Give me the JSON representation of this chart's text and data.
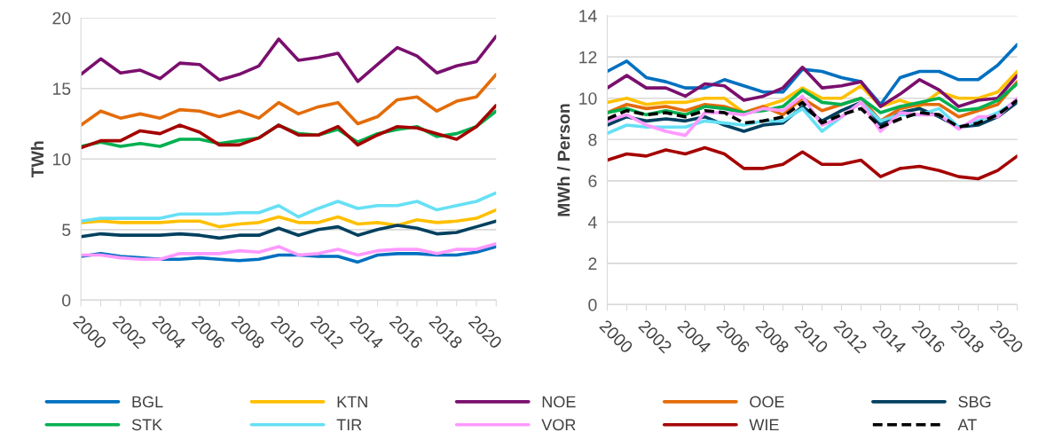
{
  "chart_data": [
    {
      "type": "line",
      "ylabel": "TWh",
      "categories": [
        "2000",
        null,
        "2002",
        null,
        "2004",
        null,
        "2006",
        null,
        "2008",
        null,
        "2010",
        null,
        "2012",
        null,
        "2014",
        null,
        "2016",
        null,
        "2018",
        null,
        "2020",
        null
      ],
      "ylim": [
        0,
        20
      ],
      "yticks": [
        0,
        5,
        10,
        15,
        20
      ],
      "grid": "y",
      "legend": "bottom",
      "line_style": "solid",
      "series": [
        {
          "name": "BGL",
          "color": "#0070c0",
          "values": [
            3.1,
            3.3,
            3.1,
            3.0,
            2.9,
            2.9,
            3.0,
            2.9,
            2.8,
            2.9,
            3.2,
            3.2,
            3.1,
            3.1,
            2.7,
            3.2,
            3.3,
            3.3,
            3.2,
            3.2,
            3.4,
            3.8
          ]
        },
        {
          "name": "KTN",
          "color": "#ffc000",
          "values": [
            5.5,
            5.6,
            5.5,
            5.5,
            5.5,
            5.6,
            5.6,
            5.2,
            5.4,
            5.5,
            5.9,
            5.5,
            5.5,
            5.9,
            5.4,
            5.5,
            5.3,
            5.7,
            5.5,
            5.6,
            5.8,
            6.4
          ]
        },
        {
          "name": "NOE",
          "color": "#7a0f6e",
          "values": [
            16.0,
            17.1,
            16.1,
            16.3,
            15.7,
            16.8,
            16.7,
            15.6,
            16.0,
            16.6,
            18.5,
            17.0,
            17.2,
            17.5,
            15.5,
            16.7,
            17.9,
            17.3,
            16.1,
            16.6,
            16.9,
            18.7
          ]
        },
        {
          "name": "OOE",
          "color": "#e36c09",
          "values": [
            12.4,
            13.4,
            12.9,
            13.2,
            12.9,
            13.5,
            13.4,
            13.0,
            13.4,
            12.9,
            14.0,
            13.2,
            13.7,
            14.0,
            12.5,
            13.0,
            14.2,
            14.4,
            13.4,
            14.1,
            14.4,
            16.0
          ]
        },
        {
          "name": "SBG",
          "color": "#00405f",
          "values": [
            4.5,
            4.7,
            4.6,
            4.6,
            4.6,
            4.7,
            4.6,
            4.4,
            4.6,
            4.6,
            5.1,
            4.6,
            5.0,
            5.2,
            4.6,
            5.0,
            5.3,
            5.1,
            4.7,
            4.8,
            5.2,
            5.6
          ]
        },
        {
          "name": "STK",
          "color": "#00b050",
          "values": [
            10.9,
            11.2,
            10.9,
            11.1,
            10.9,
            11.4,
            11.4,
            11.1,
            11.3,
            11.5,
            12.4,
            11.8,
            11.7,
            12.1,
            11.2,
            11.8,
            12.1,
            12.3,
            11.6,
            11.8,
            12.3,
            13.4
          ]
        },
        {
          "name": "TIR",
          "color": "#66e0f5",
          "values": [
            5.6,
            5.8,
            5.8,
            5.8,
            5.8,
            6.1,
            6.1,
            6.1,
            6.2,
            6.2,
            6.7,
            5.9,
            6.5,
            7.0,
            6.5,
            6.7,
            6.7,
            7.0,
            6.4,
            6.7,
            7.0,
            7.6
          ]
        },
        {
          "name": "VOR",
          "color": "#ff99ff",
          "values": [
            3.2,
            3.2,
            3.0,
            2.9,
            2.9,
            3.3,
            3.3,
            3.3,
            3.5,
            3.4,
            3.8,
            3.2,
            3.3,
            3.6,
            3.2,
            3.5,
            3.6,
            3.6,
            3.3,
            3.6,
            3.6,
            4.0
          ]
        },
        {
          "name": "WIE",
          "color": "#a50000",
          "values": [
            10.8,
            11.3,
            11.3,
            12.0,
            11.8,
            12.4,
            11.9,
            11.0,
            11.0,
            11.5,
            12.4,
            11.7,
            11.7,
            12.3,
            11.0,
            11.7,
            12.3,
            12.2,
            11.8,
            11.4,
            12.3,
            13.8
          ]
        }
      ]
    },
    {
      "type": "line",
      "ylabel": "MWh / Person",
      "categories": [
        "2000",
        null,
        "2002",
        null,
        "2004",
        null,
        "2006",
        null,
        "2008",
        null,
        "2010",
        null,
        "2012",
        null,
        "2014",
        null,
        "2016",
        null,
        "2018",
        null,
        "2020",
        null
      ],
      "ylim": [
        0,
        14
      ],
      "yticks": [
        0,
        2,
        4,
        6,
        8,
        10,
        12,
        14
      ],
      "grid": "y",
      "legend": "bottom",
      "line_style": "solid",
      "series": [
        {
          "name": "BGL",
          "color": "#0070c0",
          "values": [
            11.3,
            11.8,
            11.0,
            10.8,
            10.5,
            10.5,
            10.9,
            10.6,
            10.3,
            10.3,
            11.4,
            11.3,
            11.0,
            10.8,
            9.7,
            11.0,
            11.3,
            11.3,
            10.9,
            10.9,
            11.6,
            12.6
          ]
        },
        {
          "name": "KTN",
          "color": "#ffc000",
          "values": [
            9.8,
            10.0,
            9.7,
            9.8,
            9.8,
            10.0,
            10.0,
            9.3,
            9.6,
            9.9,
            10.5,
            10.0,
            10.0,
            10.6,
            9.6,
            9.9,
            9.6,
            10.3,
            10.0,
            10.0,
            10.3,
            11.3
          ]
        },
        {
          "name": "NOE",
          "color": "#7a0f6e",
          "values": [
            10.5,
            11.1,
            10.5,
            10.5,
            10.1,
            10.7,
            10.6,
            9.9,
            10.1,
            10.5,
            11.5,
            10.5,
            10.6,
            10.8,
            9.6,
            10.2,
            10.9,
            10.4,
            9.6,
            9.9,
            10.0,
            11.1
          ]
        },
        {
          "name": "OOE",
          "color": "#e36c09",
          "values": [
            9.3,
            9.7,
            9.5,
            9.6,
            9.4,
            9.7,
            9.6,
            9.3,
            9.6,
            9.2,
            10.0,
            9.4,
            9.7,
            10.0,
            8.9,
            9.5,
            9.7,
            9.7,
            9.1,
            9.4,
            9.7,
            10.8
          ]
        },
        {
          "name": "SBG",
          "color": "#00405f",
          "values": [
            8.7,
            9.1,
            8.9,
            9.0,
            8.9,
            9.1,
            8.7,
            8.4,
            8.7,
            8.8,
            9.6,
            8.9,
            9.4,
            9.8,
            8.7,
            9.3,
            9.5,
            9.1,
            8.6,
            8.7,
            9.1,
            9.8
          ]
        },
        {
          "name": "STK",
          "color": "#00b050",
          "values": [
            9.3,
            9.5,
            9.2,
            9.4,
            9.2,
            9.6,
            9.5,
            9.3,
            9.4,
            9.6,
            10.4,
            9.8,
            9.7,
            10.0,
            9.3,
            9.6,
            9.8,
            10.0,
            9.4,
            9.5,
            9.9,
            10.7
          ]
        },
        {
          "name": "TIR",
          "color": "#66e0f5",
          "values": [
            8.3,
            8.7,
            8.6,
            8.6,
            8.6,
            8.9,
            8.8,
            8.7,
            8.9,
            8.9,
            9.5,
            8.4,
            9.1,
            9.8,
            8.9,
            9.2,
            9.2,
            9.5,
            8.6,
            8.9,
            9.3,
            9.9
          ]
        },
        {
          "name": "VOR",
          "color": "#ff99ff",
          "values": [
            8.9,
            9.2,
            8.7,
            8.4,
            8.2,
            9.3,
            9.3,
            9.2,
            9.5,
            9.4,
            10.1,
            8.7,
            9.1,
            9.8,
            8.4,
            9.3,
            9.2,
            9.2,
            8.5,
            9.1,
            9.1,
            10.0
          ]
        },
        {
          "name": "WIE",
          "color": "#a50000",
          "values": [
            7.0,
            7.3,
            7.2,
            7.5,
            7.3,
            7.6,
            7.3,
            6.6,
            6.6,
            6.8,
            7.4,
            6.8,
            6.8,
            7.0,
            6.2,
            6.6,
            6.7,
            6.5,
            6.2,
            6.1,
            6.5,
            7.2
          ]
        },
        {
          "name": "AT",
          "color": "#000000",
          "line_style": "dashed",
          "values": [
            9.0,
            9.4,
            9.2,
            9.3,
            9.1,
            9.4,
            9.3,
            8.8,
            8.9,
            9.1,
            9.8,
            8.8,
            9.2,
            9.5,
            8.6,
            9.0,
            9.3,
            9.2,
            8.6,
            8.8,
            9.2,
            9.9
          ]
        }
      ]
    }
  ]
}
